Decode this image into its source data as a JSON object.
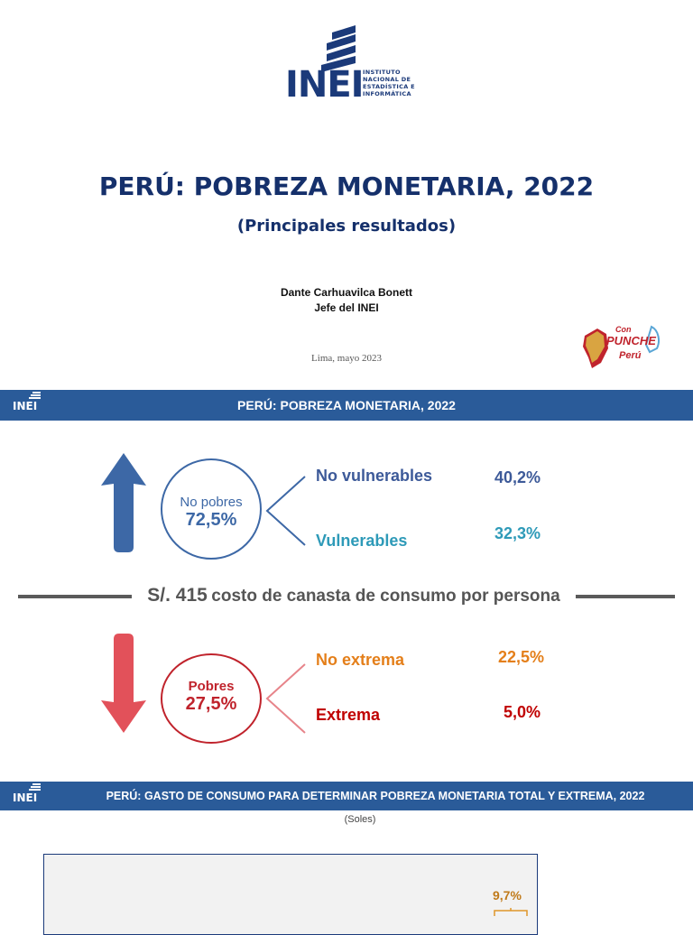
{
  "cover": {
    "logo": {
      "acronym": "INEI",
      "line1": "INSTITUTO",
      "line2": "NACIONAL DE",
      "line3": "ESTADÍSTICA E",
      "line4": "INFORMÁTICA"
    },
    "title": "PERÚ: POBREZA MONETARIA, 2022",
    "subtitle": "(Principales resultados)",
    "author_name": "Dante Carhuavilca Bonett",
    "author_role": "Jefe del INEI",
    "place_date": "Lima, mayo 2023",
    "badge": {
      "line1": "Con",
      "line2": "PUNCHE",
      "line3": "Perú"
    }
  },
  "summary": {
    "header_title": "PERÚ: POBREZA MONETARIA, 2022",
    "logo_acronym": "INEI",
    "no_pobres": {
      "label": "No pobres",
      "value": "72,5%",
      "color": "#3d68a6"
    },
    "no_vulnerables": {
      "label": "No vulnerables",
      "value": "40,2%",
      "color": "#3d5a99"
    },
    "vulnerables": {
      "label": "Vulnerables",
      "value": "32,3%",
      "color": "#2e9ab8"
    },
    "basket": {
      "amount": "S/. 415",
      "text": "costo de canasta de consumo por persona"
    },
    "pobres": {
      "label": "Pobres",
      "value": "27,5%",
      "color": "#c0232c"
    },
    "no_extrema": {
      "label": "No extrema",
      "value": "22,5%",
      "color": "#e47f1a"
    },
    "extrema": {
      "label": "Extrema",
      "value": "5,0%",
      "color": "#c00000"
    }
  },
  "spending": {
    "header_title": "PERÚ: GASTO DE CONSUMO PARA DETERMINAR POBREZA MONETARIA TOTAL Y EXTREMA, 2022",
    "logo_acronym": "INEI",
    "units": "(Soles)",
    "annotation": "9,7%"
  }
}
